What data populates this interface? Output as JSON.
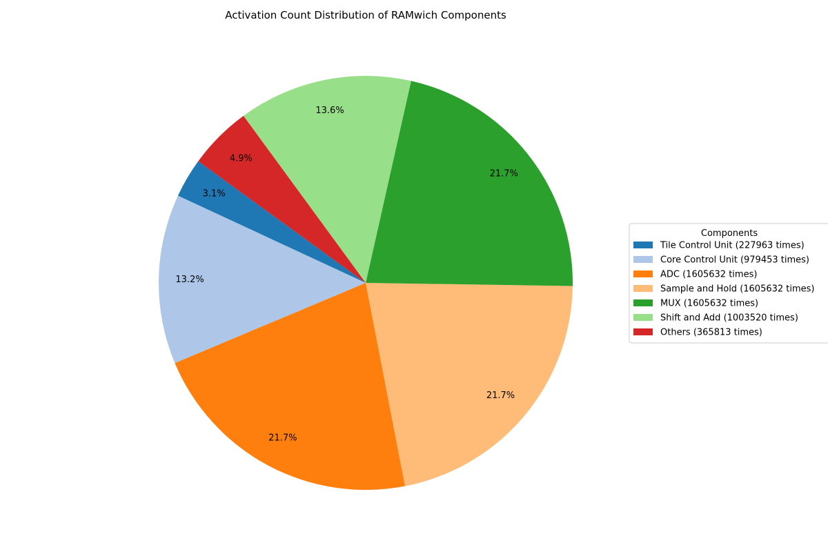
{
  "chart_data": {
    "type": "pie",
    "title": "Activation Count Distribution of RAMwich Components",
    "start_angle_deg": 144,
    "direction": "counterclockwise",
    "legend_title": "Components",
    "legend_position": "center-right",
    "slices": [
      {
        "label": "Tile Control Unit (227963 times)",
        "value": 227963,
        "percent": "3.1%",
        "color": "#1f77b4"
      },
      {
        "label": "Core Control Unit (979453 times)",
        "value": 979453,
        "percent": "13.2%",
        "color": "#aec7e8"
      },
      {
        "label": "ADC (1605632 times)",
        "value": 1605632,
        "percent": "21.7%",
        "color": "#ff7f0e"
      },
      {
        "label": "Sample and Hold (1605632 times)",
        "value": 1605632,
        "percent": "21.7%",
        "color": "#ffbb78"
      },
      {
        "label": "MUX (1605632 times)",
        "value": 1605632,
        "percent": "21.7%",
        "color": "#2ca02c"
      },
      {
        "label": "Shift and Add (1003520 times)",
        "value": 1003520,
        "percent": "13.6%",
        "color": "#98df8a"
      },
      {
        "label": "Others (365813 times)",
        "value": 365813,
        "percent": "4.9%",
        "color": "#d62728"
      }
    ]
  }
}
